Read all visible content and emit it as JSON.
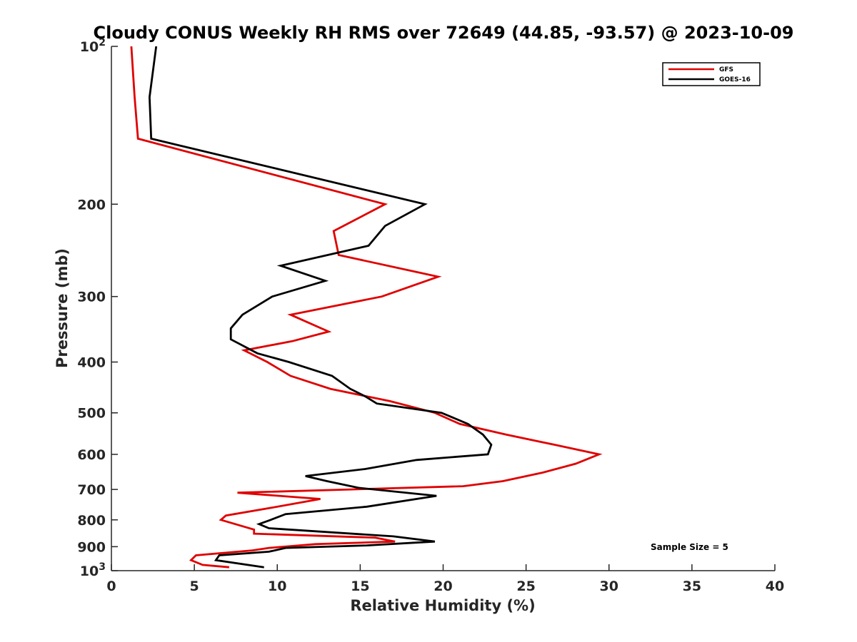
{
  "chart_data": {
    "type": "line",
    "title": "Cloudy CONUS Weekly RH RMS over 72649 (44.85, -93.57) @ 2023-10-09",
    "xlabel": "Relative Humidity (%)",
    "ylabel": "Pressure (mb)",
    "xlim": [
      0,
      40
    ],
    "ylim": [
      1000,
      100
    ],
    "yscale": "log",
    "grid": false,
    "xticks": [
      0,
      5,
      10,
      15,
      20,
      25,
      30,
      35,
      40
    ],
    "yticks": [
      {
        "value": 100,
        "label": "10",
        "sup": "2"
      },
      {
        "value": 200,
        "label": "200",
        "sup": ""
      },
      {
        "value": 300,
        "label": "300",
        "sup": ""
      },
      {
        "value": 400,
        "label": "400",
        "sup": ""
      },
      {
        "value": 500,
        "label": "500",
        "sup": ""
      },
      {
        "value": 600,
        "label": "600",
        "sup": ""
      },
      {
        "value": 700,
        "label": "700",
        "sup": ""
      },
      {
        "value": 800,
        "label": "800",
        "sup": ""
      },
      {
        "value": 900,
        "label": "900",
        "sup": ""
      },
      {
        "value": 1000,
        "label": "10",
        "sup": "3"
      }
    ],
    "legend_position": "top-right",
    "annotation": "Sample Size = 5",
    "series": [
      {
        "name": "GFS",
        "color": "#e00000",
        "points": [
          [
            1.2,
            100
          ],
          [
            1.4,
            125
          ],
          [
            1.6,
            150
          ],
          [
            16.5,
            200
          ],
          [
            13.4,
            225
          ],
          [
            13.7,
            250
          ],
          [
            19.7,
            275
          ],
          [
            16.3,
            300
          ],
          [
            10.8,
            325
          ],
          [
            13.1,
            350
          ],
          [
            10.9,
            365
          ],
          [
            8.0,
            380
          ],
          [
            9.4,
            400
          ],
          [
            10.8,
            425
          ],
          [
            13.2,
            450
          ],
          [
            16.8,
            475
          ],
          [
            19.5,
            500
          ],
          [
            21.0,
            525
          ],
          [
            23.8,
            550
          ],
          [
            26.7,
            575
          ],
          [
            29.4,
            600
          ],
          [
            28.0,
            625
          ],
          [
            26.0,
            650
          ],
          [
            23.6,
            675
          ],
          [
            21.2,
            690
          ],
          [
            7.6,
            710
          ],
          [
            12.6,
            730
          ],
          [
            9.5,
            760
          ],
          [
            6.9,
            785
          ],
          [
            6.6,
            800
          ],
          [
            8.6,
            835
          ],
          [
            8.6,
            850
          ],
          [
            15.9,
            865
          ],
          [
            17.1,
            880
          ],
          [
            12.3,
            890
          ],
          [
            9.5,
            905
          ],
          [
            8.5,
            915
          ],
          [
            5.1,
            935
          ],
          [
            4.8,
            955
          ],
          [
            5.5,
            975
          ],
          [
            7.1,
            985
          ]
        ]
      },
      {
        "name": "GOES-16",
        "color": "#000000",
        "points": [
          [
            2.7,
            100
          ],
          [
            2.3,
            125
          ],
          [
            2.4,
            150
          ],
          [
            18.9,
            200
          ],
          [
            16.5,
            220
          ],
          [
            15.5,
            240
          ],
          [
            10.2,
            262
          ],
          [
            12.9,
            280
          ],
          [
            9.7,
            300
          ],
          [
            7.9,
            325
          ],
          [
            7.2,
            345
          ],
          [
            7.2,
            362
          ],
          [
            8.8,
            385
          ],
          [
            10.7,
            400
          ],
          [
            13.3,
            425
          ],
          [
            14.4,
            450
          ],
          [
            15.3,
            465
          ],
          [
            16.0,
            480
          ],
          [
            19.9,
            500
          ],
          [
            21.5,
            525
          ],
          [
            22.4,
            550
          ],
          [
            22.9,
            575
          ],
          [
            22.7,
            600
          ],
          [
            18.4,
            615
          ],
          [
            15.3,
            640
          ],
          [
            11.7,
            660
          ],
          [
            13.0,
            675
          ],
          [
            14.9,
            695
          ],
          [
            19.6,
            720
          ],
          [
            15.4,
            755
          ],
          [
            10.5,
            780
          ],
          [
            9.6,
            800
          ],
          [
            8.9,
            815
          ],
          [
            9.5,
            830
          ],
          [
            17.0,
            860
          ],
          [
            19.5,
            880
          ],
          [
            15.4,
            895
          ],
          [
            10.5,
            905
          ],
          [
            9.5,
            920
          ],
          [
            6.5,
            935
          ],
          [
            6.3,
            955
          ],
          [
            9.2,
            985
          ]
        ]
      }
    ]
  }
}
